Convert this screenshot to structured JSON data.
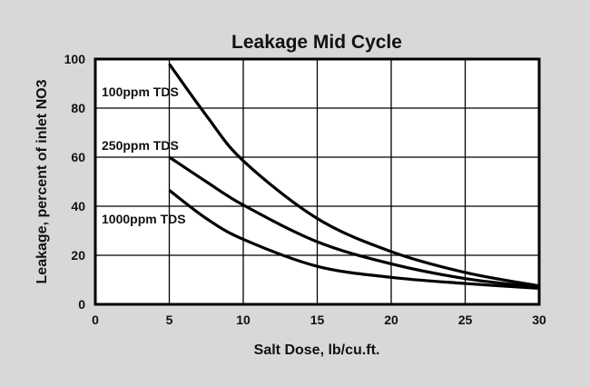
{
  "chart_data": {
    "type": "line",
    "title": "Leakage Mid Cycle",
    "xlabel": "Salt Dose, lb/cu.ft.",
    "ylabel": "Leakage, percent of inlet NO3",
    "xlim": [
      0,
      30
    ],
    "ylim": [
      0,
      100
    ],
    "xticks": [
      0,
      5,
      10,
      15,
      20,
      25,
      30
    ],
    "yticks": [
      0,
      20,
      40,
      60,
      80,
      100
    ],
    "grid": true,
    "series": [
      {
        "name": "100ppm TDS",
        "x": [
          5,
          7.5,
          10,
          15,
          20,
          25,
          30
        ],
        "y": [
          98,
          77,
          58.5,
          35,
          21.5,
          13,
          7.5
        ]
      },
      {
        "name": "250ppm TDS",
        "x": [
          5,
          7.5,
          10,
          15,
          20,
          25,
          30
        ],
        "y": [
          60,
          50,
          40.5,
          25.5,
          16.5,
          10.5,
          7
        ]
      },
      {
        "name": "1000ppm TDS",
        "x": [
          5,
          7.5,
          10,
          15,
          20,
          25,
          30
        ],
        "y": [
          46.5,
          35,
          26.5,
          15.5,
          11,
          8.5,
          6.5
        ]
      }
    ]
  }
}
